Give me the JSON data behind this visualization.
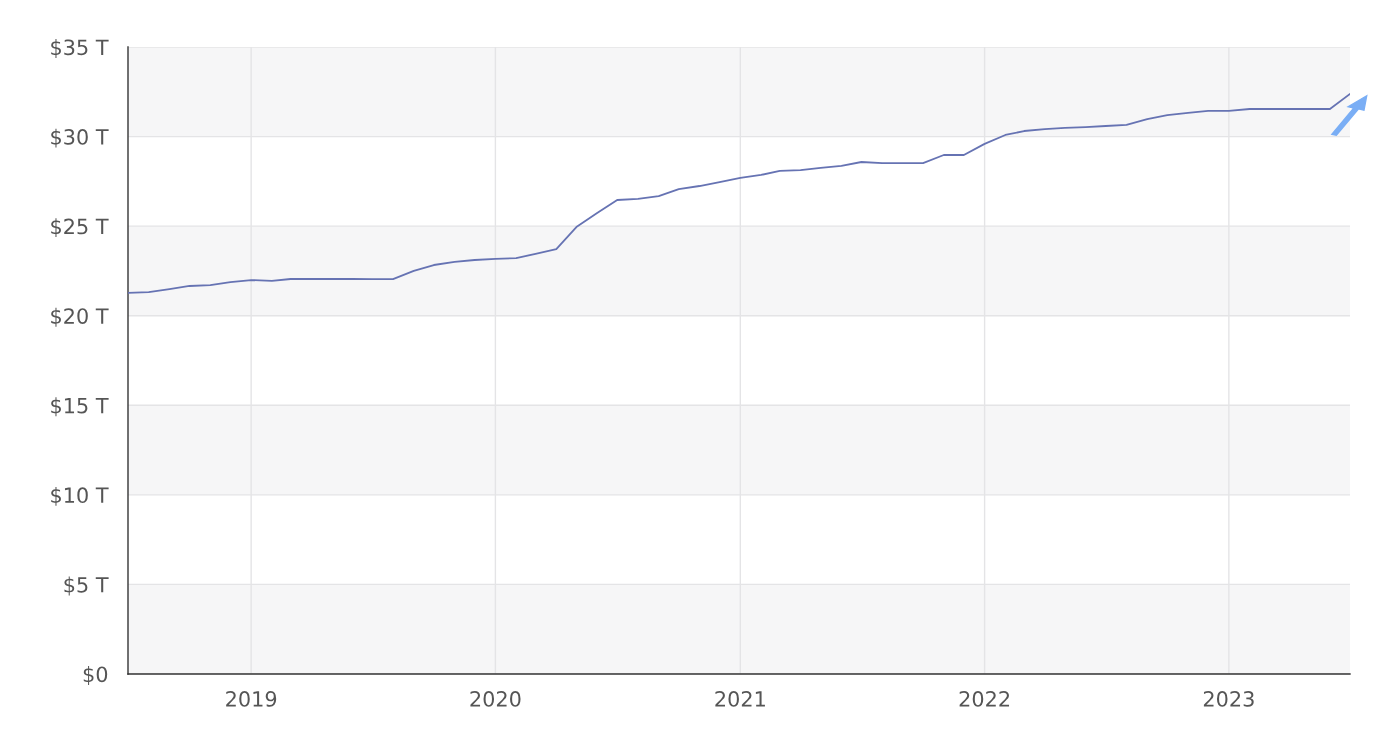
{
  "chart_data": {
    "type": "line",
    "x": [
      "2018-07",
      "2018-08",
      "2018-09",
      "2018-10",
      "2018-11",
      "2018-12",
      "2019-01",
      "2019-02",
      "2019-03",
      "2019-04",
      "2019-05",
      "2019-06",
      "2019-07",
      "2019-08",
      "2019-09",
      "2019-10",
      "2019-11",
      "2019-12",
      "2020-01",
      "2020-02",
      "2020-03",
      "2020-04",
      "2020-05",
      "2020-06",
      "2020-07",
      "2020-08",
      "2020-09",
      "2020-10",
      "2020-11",
      "2020-12",
      "2021-01",
      "2021-02",
      "2021-03",
      "2021-04",
      "2021-05",
      "2021-06",
      "2021-07",
      "2021-08",
      "2021-09",
      "2021-10",
      "2021-11",
      "2021-12",
      "2022-01",
      "2022-02",
      "2022-03",
      "2022-04",
      "2022-05",
      "2022-06",
      "2022-07",
      "2022-08",
      "2022-09",
      "2022-10",
      "2022-11",
      "2022-12",
      "2023-01",
      "2023-02",
      "2023-03",
      "2023-04",
      "2023-05",
      "2023-06",
      "2023-07"
    ],
    "series": [
      {
        "color": "#6673b3",
        "values": [
          21.27,
          21.32,
          21.49,
          21.66,
          21.71,
          21.88,
          21.99,
          21.94,
          22.05,
          22.05,
          22.05,
          22.05,
          22.04,
          22.04,
          22.5,
          22.83,
          23.0,
          23.11,
          23.17,
          23.22,
          23.45,
          23.72,
          24.95,
          25.73,
          26.46,
          26.52,
          26.68,
          27.07,
          27.24,
          27.46,
          27.69,
          27.86,
          28.08,
          28.13,
          28.25,
          28.36,
          28.58,
          28.52,
          28.52,
          28.52,
          28.97,
          28.97,
          29.59,
          30.09,
          30.31,
          30.42,
          30.48,
          30.53,
          30.59,
          30.65,
          30.98,
          31.2,
          31.32,
          31.43,
          31.43,
          31.54,
          31.54,
          31.54,
          31.54,
          31.54,
          32.38
        ]
      }
    ],
    "xlim": [
      "2018-07",
      "2023-07"
    ],
    "xticks": [
      {
        "value": "2019-01",
        "label": "2019"
      },
      {
        "value": "2020-01",
        "label": "2020"
      },
      {
        "value": "2021-01",
        "label": "2021"
      },
      {
        "value": "2022-01",
        "label": "2022"
      },
      {
        "value": "2023-01",
        "label": "2023"
      }
    ],
    "ylim": [
      0,
      35
    ],
    "yticks": [
      {
        "value": 0,
        "label": "$0"
      },
      {
        "value": 5,
        "label": "$5 T"
      },
      {
        "value": 10,
        "label": "$10 T"
      },
      {
        "value": 15,
        "label": "$15 T"
      },
      {
        "value": 20,
        "label": "$20 T"
      },
      {
        "value": 25,
        "label": "$25 T"
      },
      {
        "value": 30,
        "label": "$30 T"
      },
      {
        "value": 35,
        "label": "$35 T"
      }
    ],
    "grid": true,
    "marker": "none",
    "line_style": "solid"
  }
}
